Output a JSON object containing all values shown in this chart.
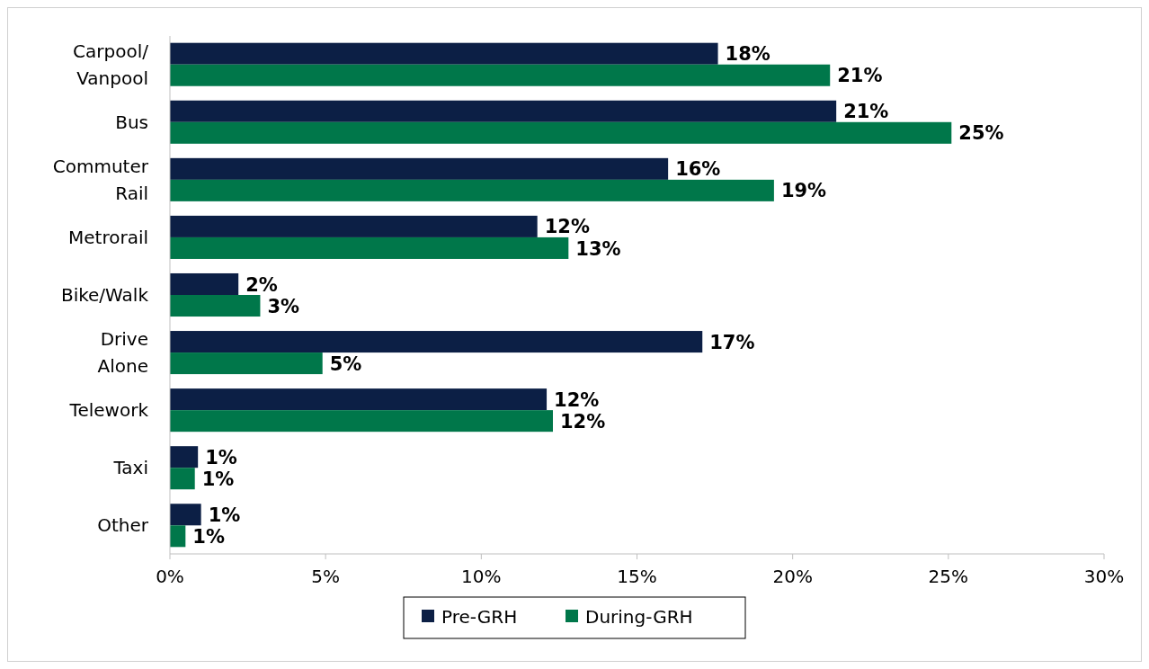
{
  "chart_data": {
    "type": "bar",
    "orientation": "horizontal",
    "categories": [
      "Carpool/ Vanpool",
      "Bus",
      "Commuter Rail",
      "Metrorail",
      "Bike/Walk",
      "Drive Alone",
      "Telework",
      "Taxi",
      "Other"
    ],
    "series": [
      {
        "name": "Pre-GRH",
        "color": "#0c1f45",
        "values": [
          17.6,
          21.4,
          16.0,
          11.8,
          2.2,
          17.1,
          12.1,
          0.9,
          1.0
        ],
        "value_labels": [
          "18%",
          "21%",
          "16%",
          "12%",
          "2%",
          "17%",
          "12%",
          "1%",
          "1%"
        ]
      },
      {
        "name": "During-GRH",
        "color": "#00774a",
        "values": [
          21.2,
          25.1,
          19.4,
          12.8,
          2.9,
          4.9,
          12.3,
          0.8,
          0.5
        ],
        "value_labels": [
          "21%",
          "25%",
          "19%",
          "13%",
          "3%",
          "5%",
          "12%",
          "1%",
          "1%"
        ]
      }
    ],
    "xlim": [
      0,
      30
    ],
    "xticks": [
      {
        "value": 0,
        "label": "0%"
      },
      {
        "value": 5,
        "label": "5%"
      },
      {
        "value": 10,
        "label": "10%"
      },
      {
        "value": 15,
        "label": "15%"
      },
      {
        "value": 20,
        "label": "20%"
      },
      {
        "value": 25,
        "label": "25%"
      },
      {
        "value": 30,
        "label": "30%"
      }
    ],
    "grid": false,
    "legend": "bottom"
  }
}
